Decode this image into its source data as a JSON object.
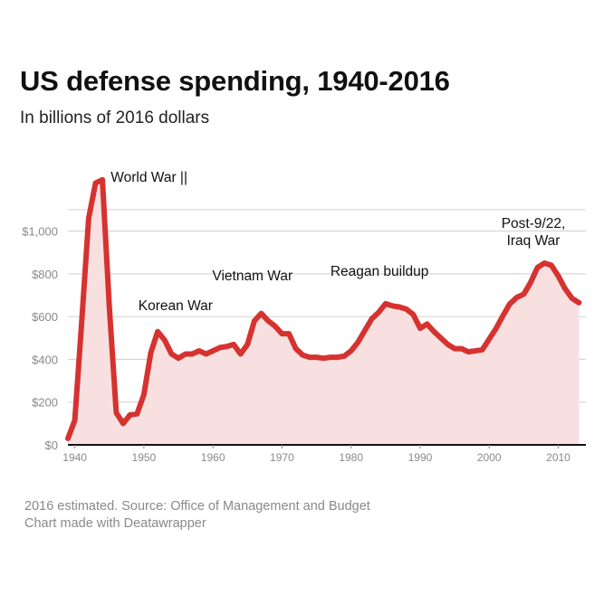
{
  "header": {
    "title": "US defense spending, 1940-2016",
    "subtitle": "In billions of 2016 dollars"
  },
  "footer": {
    "source": "2016 estimated. Source: Office of Management and Budget",
    "credit": "Chart made with Deatawrapper"
  },
  "colors": {
    "line": "#d63230",
    "area": "#f8e0e0",
    "grid": "#d0d0d0",
    "axis": "#111111",
    "tick_text": "#8a8a8a"
  },
  "chart_data": {
    "type": "area",
    "title": "US defense spending, 1940-2016",
    "subtitle": "In billions of 2016 dollars",
    "xlabel": "",
    "ylabel": "",
    "xlim": [
      1939,
      2014
    ],
    "ylim": [
      0,
      1180
    ],
    "grid": true,
    "y_ticks": [
      {
        "value": 0,
        "label": "$0"
      },
      {
        "value": 200,
        "label": "$200"
      },
      {
        "value": 400,
        "label": "$400"
      },
      {
        "value": 600,
        "label": "$600"
      },
      {
        "value": 800,
        "label": "$800"
      },
      {
        "value": 1000,
        "label": "$1,000"
      }
    ],
    "x_ticks": [
      {
        "value": 1940,
        "label": "1940"
      },
      {
        "value": 1950,
        "label": "1950"
      },
      {
        "value": 1960,
        "label": "1960"
      },
      {
        "value": 1970,
        "label": "1970"
      },
      {
        "value": 1980,
        "label": "1980"
      },
      {
        "value": 1990,
        "label": "1990"
      },
      {
        "value": 2000,
        "label": "2000"
      },
      {
        "value": 2010,
        "label": "2010"
      }
    ],
    "series": [
      {
        "x": [
          1939,
          1940,
          1941,
          1942,
          1943,
          1944,
          1945,
          1946,
          1947,
          1948,
          1949,
          1950,
          1951,
          1952,
          1953,
          1954,
          1955,
          1956,
          1957,
          1958,
          1959,
          1960,
          1961,
          1962,
          1963,
          1964,
          1965,
          1966,
          1967,
          1968,
          1969,
          1970,
          1971,
          1972,
          1973,
          1974,
          1975,
          1976,
          1977,
          1978,
          1979,
          1980,
          1981,
          1982,
          1983,
          1984,
          1985,
          1986,
          1987,
          1988,
          1989,
          1990,
          1991,
          1992,
          1993,
          1994,
          1995,
          1996,
          1997,
          1998,
          1999,
          2000,
          2001,
          2002,
          2003,
          2004,
          2005,
          2006,
          2007,
          2008,
          2009,
          2010,
          2011,
          2012,
          2013
        ],
        "y": [
          30,
          115,
          580,
          1060,
          1225,
          1240,
          640,
          150,
          100,
          140,
          145,
          235,
          430,
          530,
          490,
          425,
          405,
          425,
          425,
          440,
          425,
          440,
          455,
          460,
          470,
          425,
          470,
          580,
          615,
          580,
          555,
          520,
          520,
          450,
          420,
          410,
          410,
          405,
          410,
          410,
          415,
          440,
          480,
          535,
          590,
          620,
          660,
          650,
          645,
          635,
          610,
          545,
          565,
          530,
          500,
          470,
          450,
          450,
          435,
          440,
          445,
          495,
          545,
          605,
          660,
          690,
          705,
          760,
          830,
          850,
          840,
          790,
          730,
          685,
          665
        ]
      }
    ],
    "annotations": [
      {
        "text": "World War ||",
        "x": 1945.2,
        "y": 1230
      },
      {
        "text": "Korean War",
        "x": 1949.2,
        "y": 630
      },
      {
        "text": "Vietnam War",
        "x": 1959.9,
        "y": 770
      },
      {
        "text": "Reagan buildup",
        "x": 1977.0,
        "y": 790
      },
      {
        "text": "Post-9/22,",
        "x": 2006.4,
        "y": 1015
      },
      {
        "text": "Iraq War",
        "x": 2006.4,
        "y": 935
      }
    ]
  }
}
